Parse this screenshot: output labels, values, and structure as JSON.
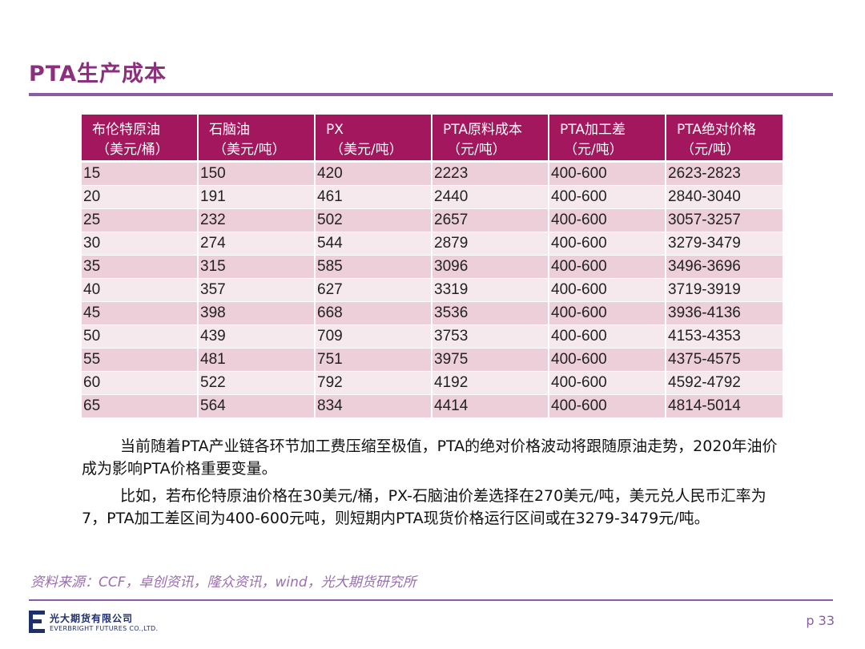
{
  "title": "PTA生产成本",
  "table": {
    "headers": [
      {
        "name": "布伦特原油",
        "unit": "（美元/桶）"
      },
      {
        "name": "石脑油",
        "unit": "（美元/吨）"
      },
      {
        "name": "PX",
        "unit": "（美元/吨）"
      },
      {
        "name": "PTA原料成本",
        "unit": "（元/吨）"
      },
      {
        "name": "PTA加工差",
        "unit": "（元/吨）"
      },
      {
        "name": "PTA绝对价格",
        "unit": "（元/吨）"
      }
    ],
    "rows": [
      [
        "15",
        "150",
        "420",
        "2223",
        "400-600",
        "2623-2823"
      ],
      [
        "20",
        "191",
        "461",
        "2440",
        "400-600",
        "2840-3040"
      ],
      [
        "25",
        "232",
        "502",
        "2657",
        "400-600",
        "3057-3257"
      ],
      [
        "30",
        "274",
        "544",
        "2879",
        "400-600",
        "3279-3479"
      ],
      [
        "35",
        "315",
        "585",
        "3096",
        "400-600",
        "3496-3696"
      ],
      [
        "40",
        "357",
        "627",
        "3319",
        "400-600",
        "3719-3919"
      ],
      [
        "45",
        "398",
        "668",
        "3536",
        "400-600",
        "3936-4136"
      ],
      [
        "50",
        "439",
        "709",
        "3753",
        "400-600",
        "4153-4353"
      ],
      [
        "55",
        "481",
        "751",
        "3975",
        "400-600",
        "4375-4575"
      ],
      [
        "60",
        "522",
        "792",
        "4192",
        "400-600",
        "4592-4792"
      ],
      [
        "65",
        "564",
        "834",
        "4414",
        "400-600",
        "4814-5014"
      ]
    ]
  },
  "paragraphs": [
    "当前随着PTA产业链各环节加工费压缩至极值，PTA的绝对价格波动将跟随原油走势，2020年油价成为影响PTA价格重要变量。",
    "比如，若布伦特原油价格在30美元/桶，PX-石脑油价差选择在270美元/吨，美元兑人民币汇率为7，PTA加工差区间为400-600元吨，则短期内PTA现货价格运行区间或在3279-3479元/吨。"
  ],
  "source": "资料来源：CCF，卓创资讯，隆众资讯，wind，光大期货研究所",
  "footer": {
    "company_cn": "光大期货有限公司",
    "company_en": "EVERBRIGHT FUTURES CO.,LTD.",
    "page": "p 33"
  },
  "colors": {
    "title": "#8c2f7c",
    "header_bg": "#a3175e",
    "row_odd": "#eccfd8",
    "row_even": "#f6e9ed",
    "rule": "#8a5ca3"
  }
}
